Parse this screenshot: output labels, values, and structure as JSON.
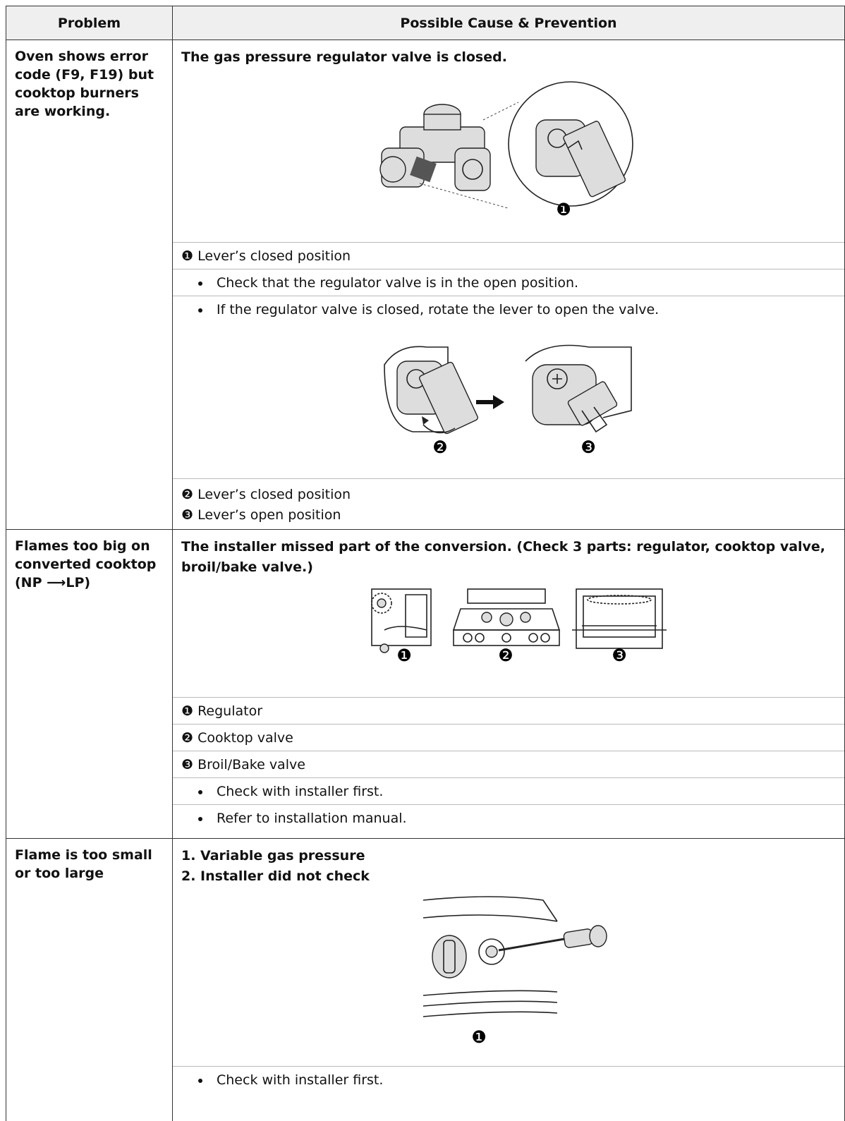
{
  "table": {
    "header": {
      "problem": "Problem",
      "cause": "Possible Cause & Prevention"
    },
    "rows": [
      {
        "problem": "Oven shows error code (F9, F19) but cooktop burners are working.",
        "cause": [
          "The gas pressure regulator valve is closed."
        ],
        "figures": [
          {
            "markers": [
              "❶"
            ]
          },
          {
            "markers": [
              "❷",
              "❸"
            ]
          }
        ],
        "labels": [
          "❶ Lever’s closed position",
          "❷ Lever’s closed position",
          "❸ Lever’s open position"
        ],
        "bullets": [
          "Check that the regulator valve is in the open position.",
          "If the regulator valve is closed, rotate the lever to open the valve."
        ]
      },
      {
        "problem": "Flames too big on converted cooktop (NP ⟶LP)",
        "cause": [
          "The installer missed part of the conversion. (Check 3 parts: regulator, cooktop valve, broil/bake valve.)"
        ],
        "figures": [
          {
            "markers": [
              "❶",
              "❷",
              "❸"
            ]
          }
        ],
        "labels": [
          "❶  Regulator",
          "❷  Cooktop valve",
          "❸  Broil/Bake valve"
        ],
        "bullets": [
          "Check with installer first.",
          "Refer to installation manual."
        ]
      },
      {
        "problem": "Flame is too small or too large",
        "cause": [
          "1. Variable gas pressure",
          "2. Installer did not check"
        ],
        "figures": [
          {
            "markers": [
              "❶"
            ]
          }
        ],
        "bullets": [
          "Check with installer first."
        ]
      }
    ]
  }
}
